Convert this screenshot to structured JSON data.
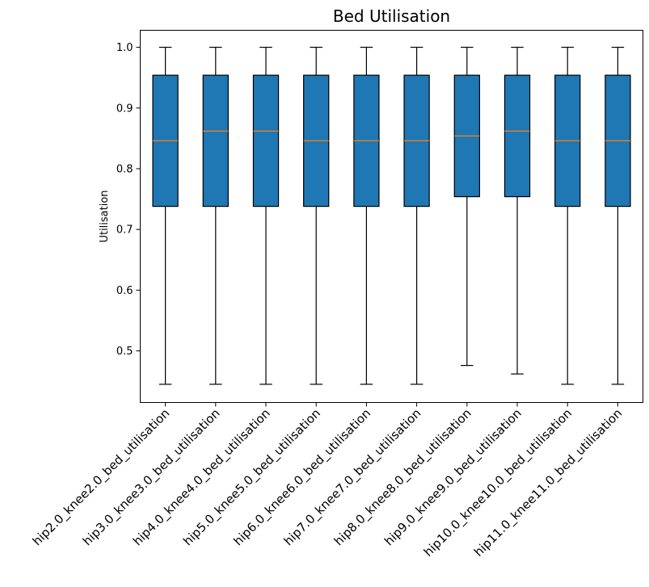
{
  "chart_data": {
    "type": "boxplot",
    "title": "Bed Utilisation",
    "xlabel": "",
    "ylabel": "Utilisation",
    "ylim": [
      0.415,
      1.028
    ],
    "yticks": [
      0.5,
      0.6,
      0.7,
      0.8,
      0.9,
      1.0
    ],
    "ytick_labels": [
      "0.5",
      "0.6",
      "0.7",
      "0.8",
      "0.9",
      "1.0"
    ],
    "grid": false,
    "box_color": "#1f77b4",
    "median_color": "#ff7f0e",
    "categories": [
      "hip2.0_knee2.0_bed_utilisation",
      "hip3.0_knee3.0_bed_utilisation",
      "hip4.0_knee4.0_bed_utilisation",
      "hip5.0_knee5.0_bed_utilisation",
      "hip6.0_knee6.0_bed_utilisation",
      "hip7.0_knee7.0_bed_utilisation",
      "hip8.0_knee8.0_bed_utilisation",
      "hip9.0_knee9.0_bed_utilisation",
      "hip10.0_knee10.0_bed_utilisation",
      "hip11.0_knee11.0_bed_utilisation"
    ],
    "boxes": [
      {
        "whislo": 0.445,
        "q1": 0.738,
        "med": 0.846,
        "q3": 0.954,
        "whishi": 1.0
      },
      {
        "whislo": 0.445,
        "q1": 0.738,
        "med": 0.862,
        "q3": 0.954,
        "whishi": 1.0
      },
      {
        "whislo": 0.445,
        "q1": 0.738,
        "med": 0.862,
        "q3": 0.954,
        "whishi": 1.0
      },
      {
        "whislo": 0.445,
        "q1": 0.738,
        "med": 0.846,
        "q3": 0.954,
        "whishi": 1.0
      },
      {
        "whislo": 0.445,
        "q1": 0.738,
        "med": 0.846,
        "q3": 0.954,
        "whishi": 1.0
      },
      {
        "whislo": 0.445,
        "q1": 0.738,
        "med": 0.846,
        "q3": 0.954,
        "whishi": 1.0
      },
      {
        "whislo": 0.476,
        "q1": 0.754,
        "med": 0.854,
        "q3": 0.954,
        "whishi": 1.0
      },
      {
        "whislo": 0.462,
        "q1": 0.754,
        "med": 0.862,
        "q3": 0.954,
        "whishi": 1.0
      },
      {
        "whislo": 0.445,
        "q1": 0.738,
        "med": 0.846,
        "q3": 0.954,
        "whishi": 1.0
      },
      {
        "whislo": 0.445,
        "q1": 0.738,
        "med": 0.846,
        "q3": 0.954,
        "whishi": 1.0
      }
    ]
  }
}
